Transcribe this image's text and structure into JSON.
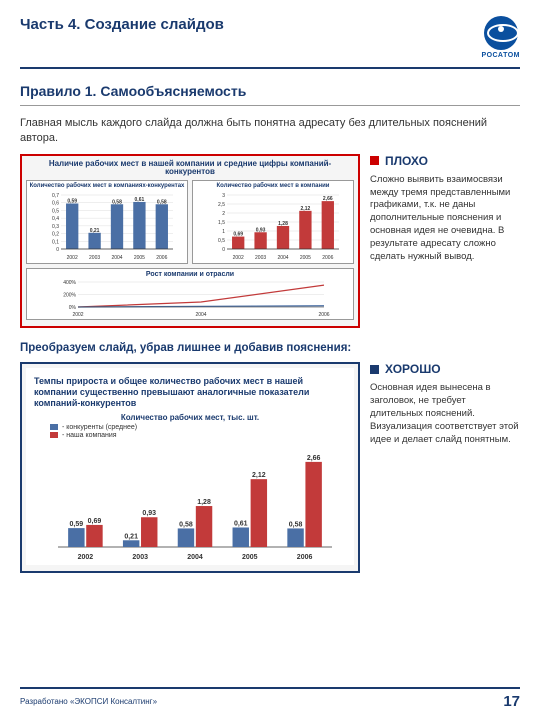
{
  "header": {
    "title": "Часть 4. Создание слайдов",
    "logo_text": "РОСАТОМ"
  },
  "rule": {
    "title": "Правило 1. Самообъясняемость",
    "desc": "Главная мысль каждого слайда должна быть понятна адресату без длительных пояснений автора."
  },
  "bad": {
    "tag": "ПЛОХО",
    "box_border_color": "#c00",
    "side_text": "Сложно выявить взаимосвязи между тремя представленными графиками, т.к. не даны дополнительные пояснения и основная идея не очевидна. В результате адресату сложно сделать нужный вывод.",
    "chart_title": "Наличие рабочих мест в нашей компании и средние цифры компаний-конкурентов",
    "chart1": {
      "title": "Количество рабочих мест в компаниях-конкурентах",
      "type": "bar",
      "categories": [
        "2002",
        "2003",
        "2004",
        "2005",
        "2006"
      ],
      "values": [
        0.59,
        0.21,
        0.58,
        0.61,
        0.58
      ],
      "color": "#4a6fa5",
      "ylim": [
        0,
        0.7
      ],
      "yticks": [
        0,
        0.1,
        0.2,
        0.3,
        0.4,
        0.5,
        0.6,
        0.7
      ]
    },
    "chart2": {
      "title": "Количество рабочих мест в компании",
      "type": "bar",
      "categories": [
        "2002",
        "2003",
        "2004",
        "2005",
        "2006"
      ],
      "values": [
        0.69,
        0.93,
        1.28,
        2.12,
        2.66
      ],
      "color": "#c23a3a",
      "ylim": [
        0,
        3
      ],
      "yticks": [
        0,
        0.5,
        1,
        1.5,
        2,
        2.5,
        3
      ]
    },
    "growth": {
      "title": "Рост компании и отрасли",
      "type": "line",
      "categories": [
        "2002",
        "2004",
        "2006"
      ],
      "yticks": [
        "0%",
        "200%",
        "400%"
      ],
      "series1": [
        0,
        80,
        350
      ],
      "series2": [
        0,
        10,
        20
      ]
    }
  },
  "transform": "Преобразуем слайд, убрав лишнее и добавив пояснения:",
  "good": {
    "tag": "ХОРОШО",
    "box_border_color": "#1a3a6e",
    "side_text": "Основная идея вынесена в заголовок, не требует длительных пояснений. Визуализация соответствует этой идее и делает слайд понятным.",
    "chart_title": "Темпы прироста и общее количество рабочих мест в нашей компании существенно превышают аналогичные показатели компаний-конкурентов",
    "subtitle": "Количество рабочих мест, тыс. шт.",
    "legend": {
      "l1": "- конкуренты (среднее)",
      "l2": "- наша компания"
    },
    "chart": {
      "type": "bar-grouped",
      "categories": [
        "2002",
        "2003",
        "2004",
        "2005",
        "2006"
      ],
      "series": [
        {
          "label": "конкуренты",
          "color": "#4a6fa5",
          "values": [
            0.59,
            0.21,
            0.58,
            0.61,
            0.58
          ],
          "labels": [
            "0,59",
            "0,21",
            "0,58",
            "0,61",
            "0,58"
          ]
        },
        {
          "label": "наша",
          "color": "#c23a3a",
          "values": [
            0.69,
            0.93,
            1.28,
            2.12,
            2.66
          ],
          "labels": [
            "0,69",
            "0,93",
            "1,28",
            "2,12",
            "2,66"
          ]
        }
      ],
      "ylim": [
        0,
        3
      ]
    }
  },
  "footer": {
    "left": "Разработано «ЭКОПСИ Консалтинг»",
    "page": "17"
  },
  "colors": {
    "brand": "#1a3a6e",
    "red": "#c23a3a",
    "blue": "#4a6fa5",
    "grid": "#cccccc",
    "text": "#333333"
  }
}
